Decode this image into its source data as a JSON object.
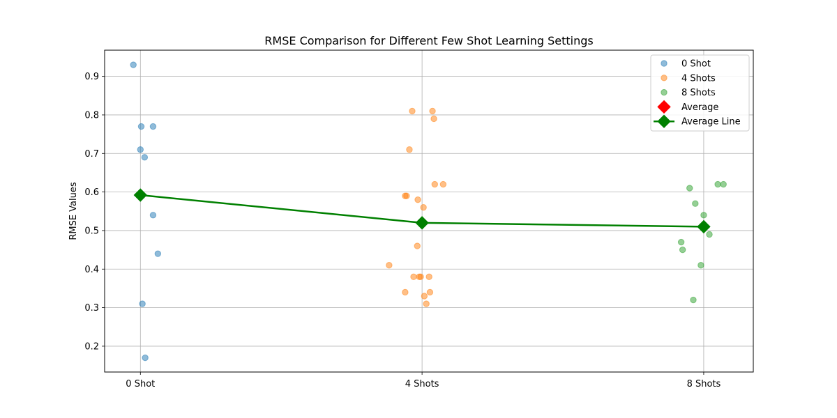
{
  "chart_data": {
    "type": "scatter",
    "title": "RMSE Comparison for Different Few Shot Learning Settings",
    "xlabel": "",
    "ylabel": "RMSE Values",
    "categories": [
      "0 Shot",
      "4 Shots",
      "8 Shots"
    ],
    "ylim": [
      0.133,
      0.968
    ],
    "yticks": [
      0.2,
      0.3,
      0.4,
      0.5,
      0.6,
      0.7,
      0.8,
      0.9
    ],
    "ytick_labels": [
      "0.2",
      "0.3",
      "0.4",
      "0.5",
      "0.6",
      "0.7",
      "0.8",
      "0.9"
    ],
    "grid": true,
    "legend_position": "top-right",
    "series": [
      {
        "name": "0 Shot",
        "color": "#1f77b4",
        "points": [
          {
            "x": -0.025,
            "y": 0.93
          },
          {
            "x": 0.003,
            "y": 0.77
          },
          {
            "x": 0.045,
            "y": 0.77
          },
          {
            "x": 0.0,
            "y": 0.71
          },
          {
            "x": 0.015,
            "y": 0.69
          },
          {
            "x": 0.045,
            "y": 0.54
          },
          {
            "x": 0.062,
            "y": 0.44
          },
          {
            "x": 0.007,
            "y": 0.31
          },
          {
            "x": 0.017,
            "y": 0.17
          }
        ]
      },
      {
        "name": "4 Shots",
        "color": "#ff7f0e",
        "points": [
          {
            "x": 0.965,
            "y": 0.81
          },
          {
            "x": 1.037,
            "y": 0.81
          },
          {
            "x": 1.042,
            "y": 0.79
          },
          {
            "x": 0.955,
            "y": 0.71
          },
          {
            "x": 1.045,
            "y": 0.62
          },
          {
            "x": 1.075,
            "y": 0.62
          },
          {
            "x": 0.94,
            "y": 0.59
          },
          {
            "x": 0.945,
            "y": 0.59
          },
          {
            "x": 0.985,
            "y": 0.58
          },
          {
            "x": 1.005,
            "y": 0.56
          },
          {
            "x": 0.983,
            "y": 0.46
          },
          {
            "x": 0.883,
            "y": 0.41
          },
          {
            "x": 0.97,
            "y": 0.38
          },
          {
            "x": 0.99,
            "y": 0.38
          },
          {
            "x": 0.995,
            "y": 0.38
          },
          {
            "x": 1.025,
            "y": 0.38
          },
          {
            "x": 0.94,
            "y": 0.34
          },
          {
            "x": 1.028,
            "y": 0.34
          },
          {
            "x": 1.008,
            "y": 0.33
          },
          {
            "x": 1.015,
            "y": 0.31
          }
        ]
      },
      {
        "name": "8 Shots",
        "color": "#2ca02c",
        "points": [
          {
            "x": 1.95,
            "y": 0.61
          },
          {
            "x": 2.05,
            "y": 0.62
          },
          {
            "x": 2.07,
            "y": 0.62
          },
          {
            "x": 1.97,
            "y": 0.57
          },
          {
            "x": 2.0,
            "y": 0.54
          },
          {
            "x": 2.02,
            "y": 0.49
          },
          {
            "x": 1.92,
            "y": 0.47
          },
          {
            "x": 1.925,
            "y": 0.45
          },
          {
            "x": 1.99,
            "y": 0.41
          },
          {
            "x": 1.963,
            "y": 0.32
          }
        ]
      }
    ],
    "average": {
      "name": "Average",
      "color": "#ff0000",
      "values": [
        0.592,
        0.52,
        0.51
      ]
    },
    "average_line": {
      "name": "Average Line",
      "color": "#008000",
      "values": [
        0.592,
        0.52,
        0.51
      ]
    }
  }
}
